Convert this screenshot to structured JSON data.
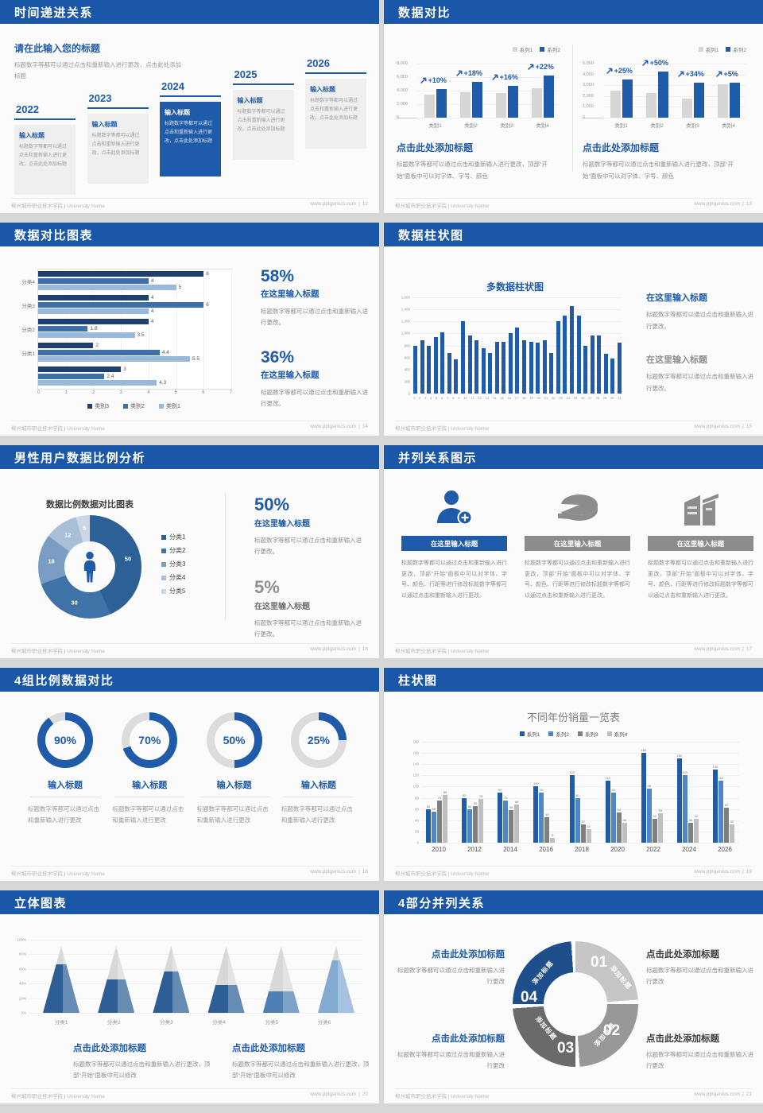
{
  "footer": {
    "left": "柳州城市职业技术学院 | University Name",
    "site": "www.pptgenius.com",
    "sep": "|"
  },
  "slides": {
    "s1": {
      "title": "时间递进关系",
      "page": "12",
      "lead_title": "请在此输入您的标题",
      "lead_body": "标题数字等都可以通过点击和重新输入进行更改，点击此处添加标题",
      "item_title": "输入标题",
      "item_body": "标题数字等都可以通过点击和重新输入进行更改，点击此处添加标题",
      "years": [
        "2022",
        "2023",
        "2024",
        "2025",
        "2026"
      ],
      "highlight_index": 2
    },
    "s2": {
      "title": "数据对比",
      "page": "13",
      "legend": [
        "系列1",
        "系列2"
      ],
      "colors": {
        "series1": "#d6d6d6",
        "series2": "#1f5ba8"
      },
      "heading": "点击此处添加标题",
      "body": "标题数字等都可以通过点击和重新输入进行更改，顶部“开始”面板中可以对字体、字号、颜色",
      "charts": [
        {
          "type": "bar",
          "ymax": 8000,
          "yticks": [
            "8,000",
            "6,000",
            "4,000",
            "2,000",
            "0"
          ],
          "categories": [
            "类别1",
            "类别2",
            "类别3",
            "类别4"
          ],
          "series1": [
            3400,
            3800,
            3600,
            4300
          ],
          "series2": [
            4200,
            5300,
            4700,
            6200
          ],
          "deltas": [
            "+10%",
            "+18%",
            "+16%",
            "+22%"
          ]
        },
        {
          "type": "bar",
          "ymax": 5000,
          "yticks": [
            "5,000",
            "4,000",
            "3,000",
            "2,000",
            "1,000",
            "0"
          ],
          "categories": [
            "类别1",
            "类别2",
            "类别3",
            "类别4"
          ],
          "series1": [
            2500,
            2300,
            1800,
            3100
          ],
          "series2": [
            3500,
            4250,
            3200,
            3200
          ],
          "deltas": [
            "+25%",
            "+50%",
            "+34%",
            "+5%"
          ]
        }
      ]
    },
    "s3": {
      "title": "数据对比图表",
      "page": "14",
      "chart": {
        "type": "bar",
        "xmax": 7,
        "xticks": [
          "0",
          "1",
          "2",
          "3",
          "4",
          "5",
          "6",
          "7"
        ],
        "groups": [
          "分类4",
          "分类3",
          "分类2",
          "分类1",
          ""
        ],
        "values": [
          [
            6,
            4,
            5
          ],
          [
            4,
            6,
            4
          ],
          [
            4,
            1.8,
            3.5
          ],
          [
            2,
            4.4,
            5.5
          ],
          [
            3,
            2.4,
            4.3
          ]
        ],
        "legend": [
          "类别3",
          "类别2",
          "类别1"
        ],
        "colors": [
          "#1f3f6e",
          "#3d6fa8",
          "#9ab9da"
        ]
      },
      "stats": [
        {
          "pct": "58%",
          "head": "在这里输入标题",
          "body": "标题数字等都可以通过点击和重新输入进行更改。"
        },
        {
          "pct": "36%",
          "head": "在这里输入标题",
          "body": "标题数字等都可以通过点击和重新输入进行更改。"
        }
      ]
    },
    "s4": {
      "title": "数据柱状图",
      "page": "15",
      "chart_title": "多数据柱状图",
      "chart": {
        "type": "bar",
        "ymax": 1600,
        "yticks": [
          "1,600",
          "1,400",
          "1,200",
          "1,000",
          "800",
          "600",
          "400",
          "200",
          "0"
        ],
        "bar_color": "#1f5ba8",
        "values": [
          800,
          880,
          800,
          940,
          1020,
          680,
          570,
          1210,
          970,
          880,
          760,
          680,
          860,
          860,
          1000,
          1100,
          880,
          860,
          850,
          880,
          680,
          1200,
          1300,
          1450,
          1300,
          800,
          960,
          960,
          660,
          580,
          850
        ]
      },
      "blocks": [
        {
          "head": "在这里输入标题",
          "body": "标题数字等都可以通过点击和重新输入进行更改。"
        },
        {
          "head": "在这里输入标题",
          "body": "标题数字等都可以通过点击和重新输入进行更改。"
        }
      ]
    },
    "s5": {
      "title": "男性用户数据比例分析",
      "page": "16",
      "chart_title": "数据比例数据对比图表",
      "chart": {
        "type": "pie",
        "slices": [
          {
            "label": "分类1",
            "value": 50,
            "color": "#2d6096"
          },
          {
            "label": "分类2",
            "value": 30,
            "color": "#3f73a8"
          },
          {
            "label": "分类3",
            "value": 18,
            "color": "#7b9cc3"
          },
          {
            "label": "分类4",
            "value": 12,
            "color": "#a9bfd8"
          },
          {
            "label": "分类5",
            "value": 5,
            "color": "#ccd7e5"
          }
        ]
      },
      "stats": [
        {
          "pct": "50%",
          "head": "在这里输入标题",
          "body": "标题数字等都可以通过点击和重新输入进行更改。"
        },
        {
          "pct": "5%",
          "head": "在这里输入标题",
          "body": "标题数字等都可以通过点击和重新输入进行更改。"
        }
      ]
    },
    "s6": {
      "title": "并列关系图示",
      "page": "17",
      "card_head": "在这里输入标题",
      "card_body": "标题数字等都可以通过点击和重新输入进行更改，顶部“开始”面板中可以对字体、字号、颜色、行距等进行修改标题数字等都可以通过点击和重新输入进行更改。",
      "icons": [
        "add-user",
        "pie-3d",
        "building"
      ]
    },
    "s7": {
      "title": "4组比例数据对比",
      "page": "18",
      "head": "输入标题",
      "body": "标题数字等都可以通过点击和重新输入进行更改",
      "ring_color": "#1f5ba8",
      "track_color": "#dcdcdc",
      "rings": [
        {
          "pct": 90,
          "label": "90%"
        },
        {
          "pct": 70,
          "label": "70%"
        },
        {
          "pct": 50,
          "label": "50%"
        },
        {
          "pct": 25,
          "label": "25%"
        }
      ]
    },
    "s8": {
      "title": "柱状图",
      "page": "19",
      "chart": {
        "type": "bar",
        "title": "不同年份销量一览表",
        "legend": [
          "系列1",
          "系列2",
          "系列3",
          "系列4"
        ],
        "colors": [
          "#1f5ba8",
          "#4e86c6",
          "#7f7f7f",
          "#bfbfbf"
        ],
        "ymax": 180,
        "yticks": [
          "180",
          "160",
          "140",
          "120",
          "100",
          "80",
          "60",
          "40",
          "20",
          "0"
        ],
        "categories": [
          "2010",
          "2012",
          "2014",
          "2016",
          "2018",
          "2020",
          "2022",
          "2024",
          "2026"
        ],
        "series": [
          [
            60,
            80,
            90,
            100,
            120,
            110,
            160,
            150,
            130
          ],
          [
            55,
            60,
            75,
            90,
            80,
            90,
            96,
            120,
            110
          ],
          [
            75,
            65,
            58,
            46,
            32,
            54,
            42,
            36,
            62
          ],
          [
            85,
            78,
            68,
            8,
            24,
            36,
            53,
            42,
            32
          ]
        ]
      }
    },
    "s9": {
      "title": "立体图表",
      "page": "20",
      "chart": {
        "type": "bar",
        "yticks": [
          "100%",
          "80%",
          "60%",
          "40%",
          "20%",
          "0%"
        ],
        "categories": [
          "分类1",
          "分类2",
          "分类3",
          "分类4",
          "分类5",
          "分类6"
        ],
        "tip_color": "#d8d8d8",
        "cones": [
          {
            "pct": 73,
            "color": "#2d5f96"
          },
          {
            "pct": 50,
            "color": "#2d5f96"
          },
          {
            "pct": 62,
            "color": "#2d5f96"
          },
          {
            "pct": 42,
            "color": "#2d5f96"
          },
          {
            "pct": 32,
            "color": "#4d7fb5"
          },
          {
            "pct": 78,
            "color": "#85aad2"
          }
        ]
      },
      "blocks": [
        {
          "head": "点击此处添加标题",
          "body": "标题数字等都可以通过点击和重新输入进行更改，顶部“开始”面板中可以修改"
        },
        {
          "head": "点击此处添加标题",
          "body": "标题数字等都可以通过点击和重新输入进行更改，顶部“开始”面板中可以修改"
        }
      ]
    },
    "s10": {
      "title": "4部分并列关系",
      "page": "21",
      "seg_label": "添加标题",
      "segments": [
        {
          "num": "01",
          "color": "#c6c6c6"
        },
        {
          "num": "02",
          "color": "#989898"
        },
        {
          "num": "03",
          "color": "#6a6a6a"
        },
        {
          "num": "04",
          "color": "#1f4e8c"
        }
      ],
      "blocks": [
        {
          "head": "点击此处添加标题",
          "body": "标题数字等都可以通过点击和重新输入进行更改"
        },
        {
          "head": "点击此处添加标题",
          "body": "标题数字等都可以通过点击和重新输入进行更改"
        },
        {
          "head": "点击此处添加标题",
          "body": "标题数字等都可以通过点击和重新输入进行更改"
        },
        {
          "head": "点击此处添加标题",
          "body": "标题数字等都可以通过点击和重新输入进行更改"
        }
      ]
    }
  }
}
